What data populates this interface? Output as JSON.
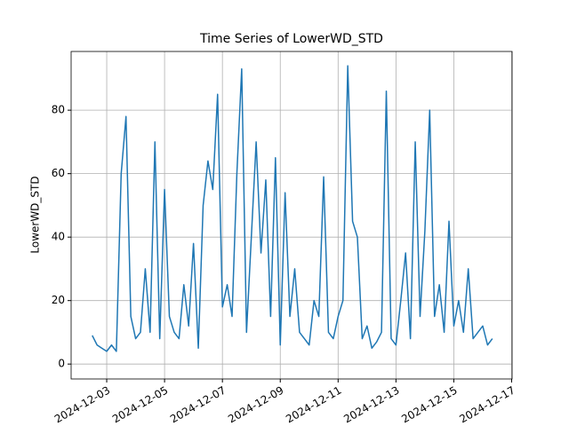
{
  "chart_data": {
    "type": "line",
    "title": "Time Series of LowerWD_STD",
    "ylabel": "LowerWD_STD",
    "x": [
      "2024-12-02 12:00",
      "2024-12-02 16:00",
      "2024-12-02 20:00",
      "2024-12-03 00:00",
      "2024-12-03 04:00",
      "2024-12-03 08:00",
      "2024-12-03 12:00",
      "2024-12-03 16:00",
      "2024-12-03 20:00",
      "2024-12-04 00:00",
      "2024-12-04 04:00",
      "2024-12-04 08:00",
      "2024-12-04 12:00",
      "2024-12-04 16:00",
      "2024-12-04 20:00",
      "2024-12-05 00:00",
      "2024-12-05 04:00",
      "2024-12-05 08:00",
      "2024-12-05 12:00",
      "2024-12-05 16:00",
      "2024-12-05 20:00",
      "2024-12-06 00:00",
      "2024-12-06 04:00",
      "2024-12-06 08:00",
      "2024-12-06 12:00",
      "2024-12-06 16:00",
      "2024-12-06 20:00",
      "2024-12-07 00:00",
      "2024-12-07 04:00",
      "2024-12-07 08:00",
      "2024-12-07 12:00",
      "2024-12-07 16:00",
      "2024-12-07 20:00",
      "2024-12-08 00:00",
      "2024-12-08 04:00",
      "2024-12-08 08:00",
      "2024-12-08 12:00",
      "2024-12-08 16:00",
      "2024-12-08 20:00",
      "2024-12-09 00:00",
      "2024-12-09 04:00",
      "2024-12-09 08:00",
      "2024-12-09 12:00",
      "2024-12-09 16:00",
      "2024-12-09 20:00",
      "2024-12-10 00:00",
      "2024-12-10 04:00",
      "2024-12-10 08:00",
      "2024-12-10 12:00",
      "2024-12-10 16:00",
      "2024-12-10 20:00",
      "2024-12-11 00:00",
      "2024-12-11 04:00",
      "2024-12-11 08:00",
      "2024-12-11 12:00",
      "2024-12-11 16:00",
      "2024-12-11 20:00",
      "2024-12-12 00:00",
      "2024-12-12 04:00",
      "2024-12-12 08:00",
      "2024-12-12 12:00",
      "2024-12-12 16:00",
      "2024-12-12 20:00",
      "2024-12-13 00:00",
      "2024-12-13 04:00",
      "2024-12-13 08:00",
      "2024-12-13 12:00",
      "2024-12-13 16:00",
      "2024-12-13 20:00",
      "2024-12-14 00:00",
      "2024-12-14 04:00",
      "2024-12-14 08:00",
      "2024-12-14 12:00",
      "2024-12-14 16:00",
      "2024-12-14 20:00",
      "2024-12-15 00:00",
      "2024-12-15 04:00",
      "2024-12-15 08:00",
      "2024-12-15 12:00",
      "2024-12-15 16:00",
      "2024-12-15 20:00",
      "2024-12-16 00:00",
      "2024-12-16 04:00",
      "2024-12-16 08:00"
    ],
    "values": [
      9,
      6,
      5,
      4,
      6,
      4,
      60,
      78,
      15,
      8,
      10,
      30,
      10,
      70,
      8,
      55,
      15,
      10,
      8,
      25,
      12,
      38,
      5,
      50,
      64,
      55,
      85,
      18,
      25,
      15,
      60,
      93,
      10,
      40,
      70,
      35,
      58,
      15,
      65,
      6,
      54,
      15,
      30,
      10,
      8,
      6,
      20,
      15,
      59,
      10,
      8,
      15,
      20,
      94,
      45,
      40,
      8,
      12,
      5,
      7,
      10,
      86,
      8,
      6,
      20,
      35,
      8,
      70,
      15,
      42,
      80,
      15,
      25,
      10,
      45,
      12,
      20,
      10,
      30,
      8,
      10,
      12,
      6,
      8
    ],
    "color": "#1f77b4",
    "xlim": [
      "2024-12-01 18:28",
      "2024-12-17 00:22"
    ],
    "xticks": [
      "2024-12-03",
      "2024-12-05",
      "2024-12-07",
      "2024-12-09",
      "2024-12-11",
      "2024-12-13",
      "2024-12-15",
      "2024-12-17"
    ],
    "ylim": [
      -4.7,
      98.5
    ],
    "yticks": [
      0,
      20,
      40,
      60,
      80
    ],
    "grid": true
  }
}
